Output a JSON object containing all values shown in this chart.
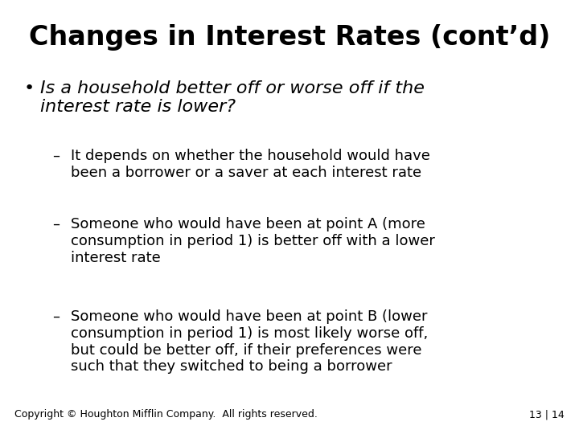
{
  "title": "Changes in Interest Rates (cont’d)",
  "background_color": "#ffffff",
  "title_fontsize": 24,
  "title_fontweight": "bold",
  "bullet_text": "Is a household better off or worse off if the\ninterest rate is lower?",
  "bullet_fontsize": 16,
  "sub_items": [
    "It depends on whether the household would have\nbeen a borrower or a saver at each interest rate",
    "Someone who would have been at point A (more\nconsumption in period 1) is better off with a lower\ninterest rate",
    "Someone who would have been at point B (lower\nconsumption in period 1) is most likely worse off,\nbut could be better off, if their preferences were\nsuch that they switched to being a borrower"
  ],
  "sub_fontsize": 13,
  "copyright_text": "Copyright © Houghton Mifflin Company.  All rights reserved.",
  "page_text": "13 | 14",
  "footer_fontsize": 9,
  "text_color": "#000000"
}
